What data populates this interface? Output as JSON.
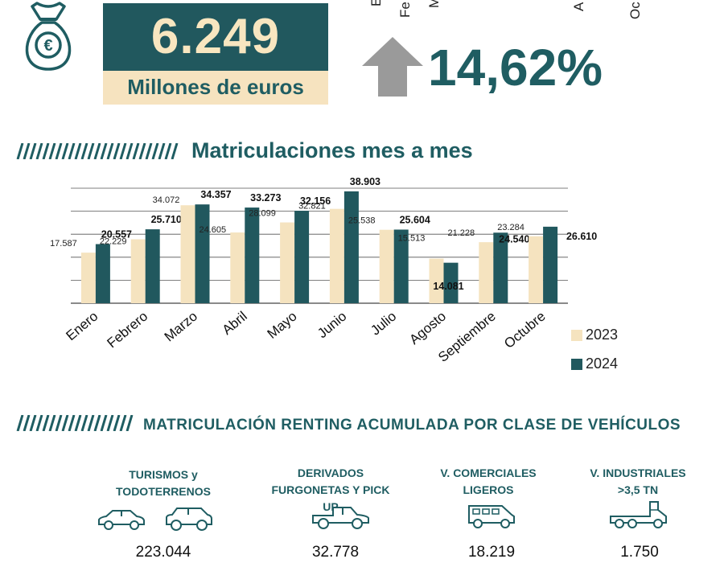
{
  "summary": {
    "amount": "6.249",
    "unit": "Millones de euros",
    "growth": "14,62%"
  },
  "cut_labels": [
    "E",
    "Fe",
    "M",
    "A",
    "Oc"
  ],
  "section1": {
    "title": "Matriculaciones mes a mes"
  },
  "chart_data": {
    "type": "bar",
    "categories": [
      "Enero",
      "Febrero",
      "Marzo",
      "Abril",
      "Mayo",
      "Junio",
      "Julio",
      "Agosto",
      "Septiembre",
      "Octubre"
    ],
    "series": [
      {
        "name": "2023",
        "values": [
          17587,
          22229,
          34072,
          24605,
          28099,
          32821,
          25538,
          15513,
          21228,
          23284
        ],
        "labels": [
          "17.587",
          "22.229",
          "34.072",
          "24.605",
          "28.099",
          "32.821",
          "25.538",
          "15.513",
          "21.228",
          "23.284"
        ]
      },
      {
        "name": "2024",
        "values": [
          20557,
          25710,
          34357,
          33273,
          32156,
          38903,
          25604,
          14081,
          24540,
          26610
        ],
        "labels": [
          "20.557",
          "25.710",
          "34.357",
          "33.273",
          "32.156",
          "38.903",
          "25.604",
          "14.081",
          "24.540",
          "26.610"
        ]
      }
    ],
    "colors": [
      "#f5e3bf",
      "#21585e"
    ],
    "ylim": [
      0,
      40000
    ],
    "grid": true,
    "legend_position": "right"
  },
  "section2": {
    "title": "MATRICULACIÓN RENTING ACUMULADA POR CLASE DE VEHÍCULOS",
    "categories": [
      {
        "line1": "TURISMOS y",
        "line2": "TODOTERRENOS",
        "value": "223.044",
        "icons": [
          "sedan-icon",
          "suv-icon"
        ]
      },
      {
        "line1": "DERIVADOS",
        "line2": "FURGONETAS Y PICK UP",
        "value": "32.778",
        "icons": [
          "pickup-icon"
        ]
      },
      {
        "line1": "V. COMERCIALES",
        "line2": "LIGEROS",
        "value": "18.219",
        "icons": [
          "van-icon"
        ]
      },
      {
        "line1": "V. INDUSTRIALES",
        "line2": ">3,5 TN",
        "value": "1.750",
        "icons": [
          "truck-icon"
        ]
      }
    ]
  },
  "colors": {
    "primary": "#21585e",
    "accent": "#f6e3bf",
    "arrow": "#9a9a9a"
  }
}
